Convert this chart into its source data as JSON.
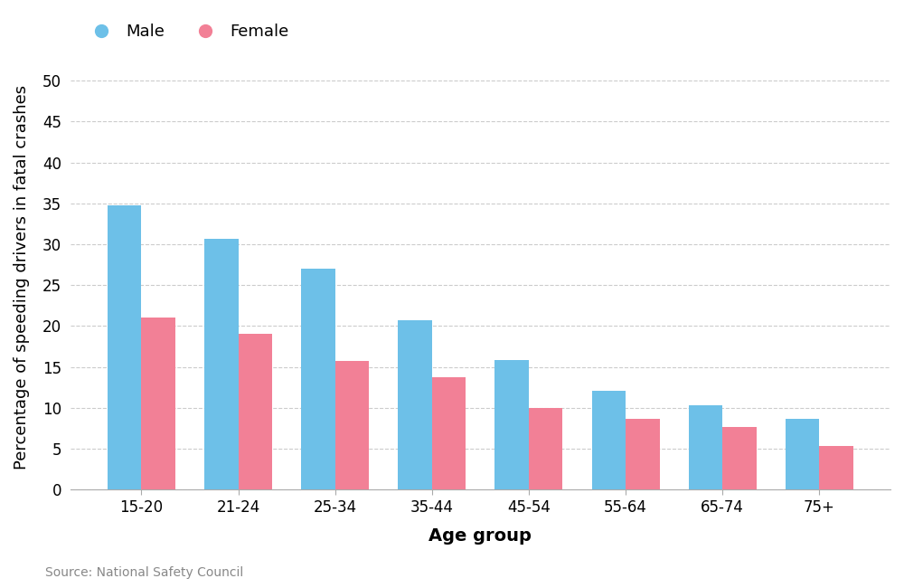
{
  "age_groups": [
    "15-20",
    "21-24",
    "25-34",
    "35-44",
    "45-54",
    "55-64",
    "65-74",
    "75+"
  ],
  "male_values": [
    34.8,
    30.7,
    27.0,
    20.7,
    15.8,
    12.1,
    10.3,
    8.6
  ],
  "female_values": [
    21.0,
    19.0,
    15.7,
    13.7,
    10.0,
    8.7,
    7.6,
    5.3
  ],
  "male_color": "#6DC0E8",
  "female_color": "#F28096",
  "xlabel": "Age group",
  "ylabel": "Percentage of speeding drivers in fatal crashes",
  "ylim": [
    0,
    52
  ],
  "yticks": [
    0,
    5,
    10,
    15,
    20,
    25,
    30,
    35,
    40,
    45,
    50
  ],
  "legend_labels": [
    "Male",
    "Female"
  ],
  "source_text": "Source: National Safety Council",
  "background_color": "#ffffff",
  "grid_color": "#cccccc",
  "bar_width": 0.35,
  "xlabel_fontsize": 14,
  "ylabel_fontsize": 13,
  "tick_fontsize": 12,
  "legend_fontsize": 13,
  "source_fontsize": 10
}
